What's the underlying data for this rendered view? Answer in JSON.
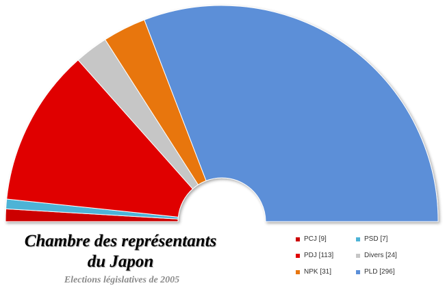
{
  "chart_data": {
    "type": "pie",
    "subtype": "parliament-semicircle",
    "title_lines": [
      "Chambre des représentants",
      "du Japon"
    ],
    "subtitle": "Elections législatives de 2005",
    "legend_position": "bottom-right",
    "series": [
      {
        "name": "PCJ [9]",
        "value": 9,
        "color": "#cc0000"
      },
      {
        "name": "PSD [7]",
        "value": 7,
        "color": "#4db3d6"
      },
      {
        "name": "PDJ [113]",
        "value": 113,
        "color": "#e00000"
      },
      {
        "name": "Divers [24]",
        "value": 24,
        "color": "#c6c6c6"
      },
      {
        "name": "NPK [31]",
        "value": 31,
        "color": "#e8760f"
      },
      {
        "name": "PLD [296]",
        "value": 296,
        "color": "#5b8fd8"
      }
    ],
    "legend_order": [
      0,
      1,
      2,
      3,
      4,
      5
    ]
  }
}
